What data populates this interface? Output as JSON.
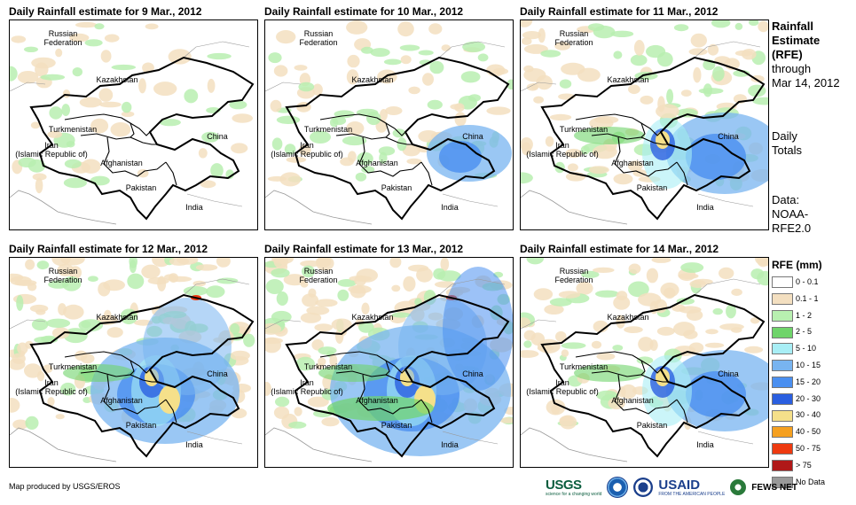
{
  "panels": [
    {
      "title": "Daily Rainfall estimate for 9 Mar., 2012",
      "intensity": 0
    },
    {
      "title": "Daily Rainfall estimate for 10 Mar., 2012",
      "intensity": 1
    },
    {
      "title": "Daily Rainfall estimate for 11 Mar., 2012",
      "intensity": 2
    },
    {
      "title": "Daily Rainfall estimate for 12 Mar., 2012",
      "intensity": 3
    },
    {
      "title": "Daily Rainfall estimate for 13 Mar., 2012",
      "intensity": 4
    },
    {
      "title": "Daily Rainfall estimate for 14 Mar., 2012",
      "intensity": 2
    }
  ],
  "map_labels": {
    "russia": "Russian\nFederation",
    "kazakhstan": "Kazakhstan",
    "turkmenistan": "Turkmenistan",
    "iran": "Iran\n(Islamic Republic of)",
    "afghanistan": "Afghanistan",
    "pakistan": "Pakistan",
    "china": "China",
    "india": "India"
  },
  "side": {
    "title_line1": "Rainfall",
    "title_line2": "Estimate",
    "title_line3": "(RFE)",
    "through": "through",
    "date": "Mar 14, 2012",
    "daily1": "Daily",
    "daily2": "Totals",
    "data1": "Data:",
    "data2": "NOAA-",
    "data3": "RFE2.0"
  },
  "legend": {
    "title": "RFE (mm)",
    "items": [
      {
        "label": "0 - 0.1",
        "color": "#ffffff"
      },
      {
        "label": "0.1 - 1",
        "color": "#f3dfc0"
      },
      {
        "label": "1 - 2",
        "color": "#b8efb0"
      },
      {
        "label": "2 - 5",
        "color": "#6fd46a"
      },
      {
        "label": "5 - 10",
        "color": "#a8eef5"
      },
      {
        "label": "10 - 15",
        "color": "#78b4f0"
      },
      {
        "label": "15 - 20",
        "color": "#4a8ff0"
      },
      {
        "label": "20 - 30",
        "color": "#2a5fe0"
      },
      {
        "label": "30 - 40",
        "color": "#f5e08a"
      },
      {
        "label": "40 - 50",
        "color": "#f5a020"
      },
      {
        "label": "50 - 75",
        "color": "#ee3a10"
      },
      {
        "label": "> 75",
        "color": "#b01818"
      },
      {
        "label": "No Data",
        "color": "#999999"
      }
    ]
  },
  "footer": "Map produced by USGS/EROS",
  "logos": {
    "usgs": "USGS",
    "usgs_tagline": "science for a changing world",
    "usaid": "USAID",
    "usaid_tagline": "FROM THE AMERICAN PEOPLE",
    "fews": "FEWS NET"
  }
}
